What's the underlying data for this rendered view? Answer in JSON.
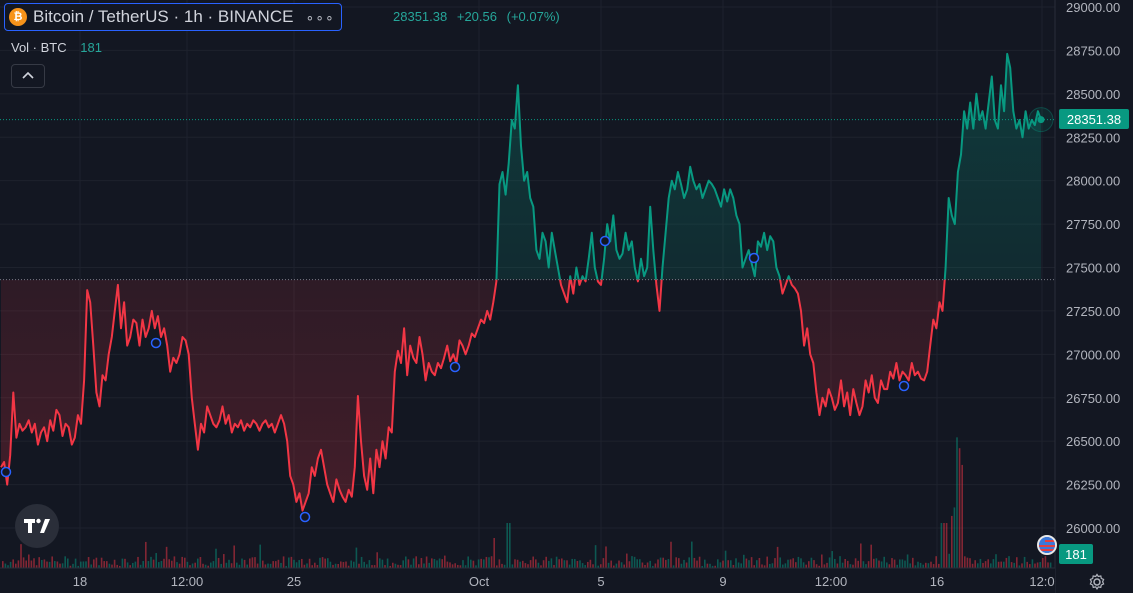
{
  "header": {
    "symbol_icon_glyph": "₿",
    "symbol_title": "Bitcoin / TetherUS · 1h · BINANCE",
    "more_icon_glyph": "∘∘∘",
    "ohlc": {
      "close": "28351.38",
      "change": "+20.56",
      "change_pct": "(+0.07%)"
    }
  },
  "volume_legend": {
    "label": "Vol · BTC",
    "value": "181"
  },
  "collapse_icon": "chevron-up-icon",
  "price_badge": "28351.38",
  "volume_badge": "181",
  "colors": {
    "up": "#089981",
    "down": "#f23645",
    "background": "#131722",
    "grid": "#1e222d"
  },
  "chart_data": {
    "type": "line",
    "symbol": "BTC/USDT",
    "interval": "1h",
    "exchange": "BINANCE",
    "y_axis": {
      "ticks": [
        "29000.00",
        "28750.00",
        "28500.00",
        "28250.00",
        "28000.00",
        "27750.00",
        "27500.00",
        "27250.00",
        "27000.00",
        "26750.00",
        "26500.00",
        "26250.00",
        "26000.00"
      ],
      "range": [
        25900,
        29030
      ]
    },
    "x_axis": {
      "ticks": [
        "18",
        "12:00",
        "25",
        "Oct",
        "5",
        "9",
        "12:00",
        "16",
        "12:0"
      ]
    },
    "baseline": 27430,
    "last_price": 28351.38,
    "up_color": "#089981",
    "down_color": "#f23645",
    "price_path": [
      26350,
      26380,
      26250,
      26420,
      26780,
      26520,
      26600,
      26560,
      26580,
      26620,
      26550,
      26600,
      26480,
      26550,
      26580,
      26500,
      26620,
      26560,
      26680,
      26650,
      26530,
      26600,
      26580,
      26480,
      26520,
      26650,
      26600,
      26850,
      27370,
      27300,
      27050,
      26780,
      26700,
      26880,
      26850,
      27000,
      27100,
      27250,
      27400,
      27150,
      27300,
      27050,
      27100,
      27200,
      27180,
      27050,
      27200,
      27100,
      27150,
      27250,
      27150,
      27220,
      27100,
      27150,
      27050,
      26900,
      26980,
      26950,
      27000,
      27100,
      27080,
      27000,
      26750,
      26600,
      26450,
      26600,
      26550,
      26700,
      26650,
      26600,
      26580,
      26620,
      26700,
      26600,
      26650,
      26550,
      26600,
      26580,
      26620,
      26560,
      26600,
      26580,
      26620,
      26600,
      26560,
      26600,
      26620,
      26580,
      26600,
      26550,
      26600,
      26650,
      26600,
      26500,
      26300,
      26250,
      26150,
      26200,
      26100,
      26150,
      26200,
      26350,
      26300,
      26400,
      26450,
      26350,
      26250,
      26200,
      26150,
      26280,
      26220,
      26180,
      26150,
      26220,
      26180,
      26350,
      26760,
      26500,
      26300,
      26220,
      26400,
      26200,
      26450,
      26350,
      26500,
      26400,
      26580,
      26550,
      26900,
      27020,
      26950,
      27150,
      26880,
      27050,
      26980,
      26950,
      27100,
      27000,
      26850,
      26950,
      26900,
      26880,
      26950,
      26920,
      26980,
      27050,
      26960,
      27000,
      26950,
      27080,
      27050,
      27000,
      27050,
      27120,
      27100,
      27150,
      27200,
      27180,
      27250,
      27200,
      27300,
      27420,
      27980,
      28050,
      27920,
      28100,
      28350,
      28300,
      28550,
      28200,
      28000,
      28050,
      27900,
      27850,
      27600,
      27550,
      27700,
      27650,
      27500,
      27700,
      27600,
      27500,
      27400,
      27350,
      27300,
      27450,
      27350,
      27500,
      27400,
      27450,
      27420,
      27550,
      27700,
      27500,
      27420,
      27400,
      27550,
      27750,
      27650,
      27800,
      27600,
      27550,
      27580,
      27700,
      27600,
      27650,
      27500,
      27420,
      27550,
      27450,
      27500,
      27850,
      27600,
      27400,
      27250,
      27500,
      27700,
      27900,
      28000,
      27950,
      28050,
      27980,
      27900,
      27950,
      28080,
      28000,
      27950,
      27980,
      27900,
      27950,
      28000,
      27980,
      27950,
      27900,
      27850,
      27950,
      27880,
      27950,
      27900,
      27800,
      27750,
      27500,
      27550,
      27600,
      27520,
      27450,
      27650,
      27620,
      27700,
      27600,
      27680,
      27650,
      27500,
      27450,
      27350,
      27400,
      27450,
      27400,
      27380,
      27350,
      27250,
      27050,
      27150,
      27000,
      26950,
      26780,
      26650,
      26750,
      26700,
      26800,
      26750,
      26680,
      26720,
      26850,
      26700,
      26780,
      26650,
      26800,
      26720,
      26650,
      26700,
      26850,
      26780,
      26880,
      26750,
      26720,
      26850,
      26800,
      26800,
      26900,
      26860,
      26950,
      26850,
      26900,
      26880,
      26850,
      26950,
      26880,
      26900,
      26860,
      26850,
      26900,
      27050,
      27200,
      27150,
      27300,
      27250,
      27500,
      27900,
      27800,
      27750,
      28050,
      28150,
      28400,
      28300,
      28450,
      28300,
      28500,
      28350,
      28400,
      28300,
      28450,
      28600,
      28350,
      28300,
      28550,
      28400,
      28730,
      28650,
      28400,
      28300,
      28350,
      28250,
      28400,
      28300,
      28350,
      28320,
      28400,
      28351
    ]
  }
}
